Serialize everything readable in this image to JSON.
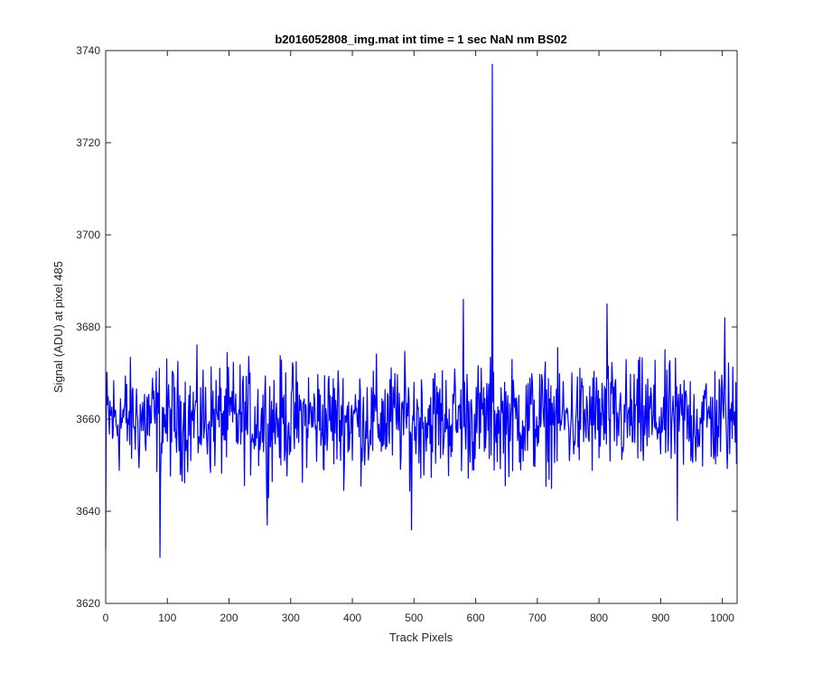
{
  "chart_data": {
    "type": "line",
    "title": "b2016052808_img.mat int time = 1 sec  NaN nm BS02",
    "xlabel": "Track Pixels",
    "ylabel": "Signal (ADU) at pixel 485",
    "xlim": [
      0,
      1024
    ],
    "ylim": [
      3620,
      3740
    ],
    "xticks": [
      0,
      100,
      200,
      300,
      400,
      500,
      600,
      700,
      800,
      900,
      1000
    ],
    "yticks": [
      3620,
      3640,
      3660,
      3680,
      3700,
      3720,
      3740
    ],
    "xtick_labels": [
      "0",
      "100",
      "200",
      "300",
      "400",
      "500",
      "600",
      "700",
      "800",
      "900",
      "1000"
    ],
    "ytick_labels": [
      "3620",
      "3640",
      "3660",
      "3680",
      "3700",
      "3720",
      "3740"
    ],
    "grid": false,
    "line_color": "#0000FF",
    "n_points": 1024,
    "baseline": 3660,
    "noise_amplitude": 6,
    "features": [
      {
        "x": 0,
        "y": 3632
      },
      {
        "x": 88,
        "y": 3630
      },
      {
        "x": 262,
        "y": 3637
      },
      {
        "x": 496,
        "y": 3636
      },
      {
        "x": 580,
        "y": 3686
      },
      {
        "x": 627,
        "y": 3737
      },
      {
        "x": 813,
        "y": 3685
      },
      {
        "x": 927,
        "y": 3638
      },
      {
        "x": 1004,
        "y": 3682
      }
    ]
  }
}
